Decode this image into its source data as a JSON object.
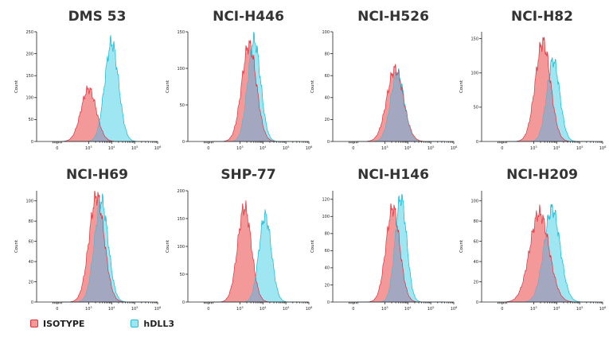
{
  "chart_data": {
    "type": "area",
    "xscale": "biexponential",
    "xticks": [
      "0",
      "10^3",
      "10^4",
      "10^5",
      "10^6"
    ],
    "colors": {
      "isotype_fill": "#f39999",
      "isotype_line": "#e0303a",
      "hdll3_fill": "#9ee6f2",
      "hdll3_line": "#22bcd6",
      "overlap_fill": "#a3a8c0"
    },
    "legend": [
      {
        "name": "ISOTYPE",
        "key": "isotype"
      },
      {
        "name": "hDLL3",
        "key": "hdll3"
      }
    ],
    "panels": [
      {
        "title": "DMS 53",
        "ylabel": "Count",
        "ylim": [
          0,
          250
        ],
        "yticks": [
          0,
          50,
          100,
          150,
          200,
          250
        ],
        "isotype": {
          "peak_log": 3.0,
          "peak_count": 120,
          "spread": 0.33
        },
        "hdll3": {
          "peak_log": 4.0,
          "peak_count": 225,
          "spread": 0.3
        }
      },
      {
        "title": "NCI-H446",
        "ylabel": "Count",
        "ylim": [
          0,
          150
        ],
        "yticks": [
          0,
          50,
          100,
          150
        ],
        "isotype": {
          "peak_log": 3.4,
          "peak_count": 132,
          "spread": 0.32
        },
        "hdll3": {
          "peak_log": 3.62,
          "peak_count": 138,
          "spread": 0.28
        }
      },
      {
        "title": "NCI-H526",
        "ylabel": "Count",
        "ylim": [
          0,
          100
        ],
        "yticks": [
          0,
          20,
          40,
          60,
          80,
          100
        ],
        "isotype": {
          "peak_log": 3.45,
          "peak_count": 66,
          "spread": 0.36
        },
        "hdll3": {
          "peak_log": 3.55,
          "peak_count": 62,
          "spread": 0.3
        }
      },
      {
        "title": "NCI-H82",
        "ylabel": "Count",
        "ylim": [
          0,
          160
        ],
        "yticks": [
          0,
          50,
          100,
          150
        ],
        "isotype": {
          "peak_log": 3.4,
          "peak_count": 145,
          "spread": 0.33
        },
        "hdll3": {
          "peak_log": 3.85,
          "peak_count": 118,
          "spread": 0.28
        }
      },
      {
        "title": "NCI-H69",
        "ylabel": "Count",
        "ylim": [
          0,
          110
        ],
        "yticks": [
          0,
          20,
          40,
          60,
          80,
          100
        ],
        "isotype": {
          "peak_log": 3.35,
          "peak_count": 105,
          "spread": 0.33
        },
        "hdll3": {
          "peak_log": 3.55,
          "peak_count": 100,
          "spread": 0.3
        }
      },
      {
        "title": "SHP-77",
        "ylabel": "Count",
        "ylim": [
          0,
          200
        ],
        "yticks": [
          0,
          50,
          100,
          150,
          200
        ],
        "isotype": {
          "peak_log": 3.2,
          "peak_count": 170,
          "spread": 0.3
        },
        "hdll3": {
          "peak_log": 4.1,
          "peak_count": 155,
          "spread": 0.27
        }
      },
      {
        "title": "NCI-H146",
        "ylabel": "Count",
        "ylim": [
          0,
          130
        ],
        "yticks": [
          0,
          20,
          40,
          60,
          80,
          100,
          120
        ],
        "isotype": {
          "peak_log": 3.35,
          "peak_count": 110,
          "spread": 0.3
        },
        "hdll3": {
          "peak_log": 3.7,
          "peak_count": 122,
          "spread": 0.25
        }
      },
      {
        "title": "NCI-H209",
        "ylabel": "Count",
        "ylim": [
          0,
          110
        ],
        "yticks": [
          0,
          20,
          40,
          60,
          80,
          100
        ],
        "isotype": {
          "peak_log": 3.25,
          "peak_count": 88,
          "spread": 0.42
        },
        "hdll3": {
          "peak_log": 3.8,
          "peak_count": 92,
          "spread": 0.35
        }
      }
    ]
  }
}
